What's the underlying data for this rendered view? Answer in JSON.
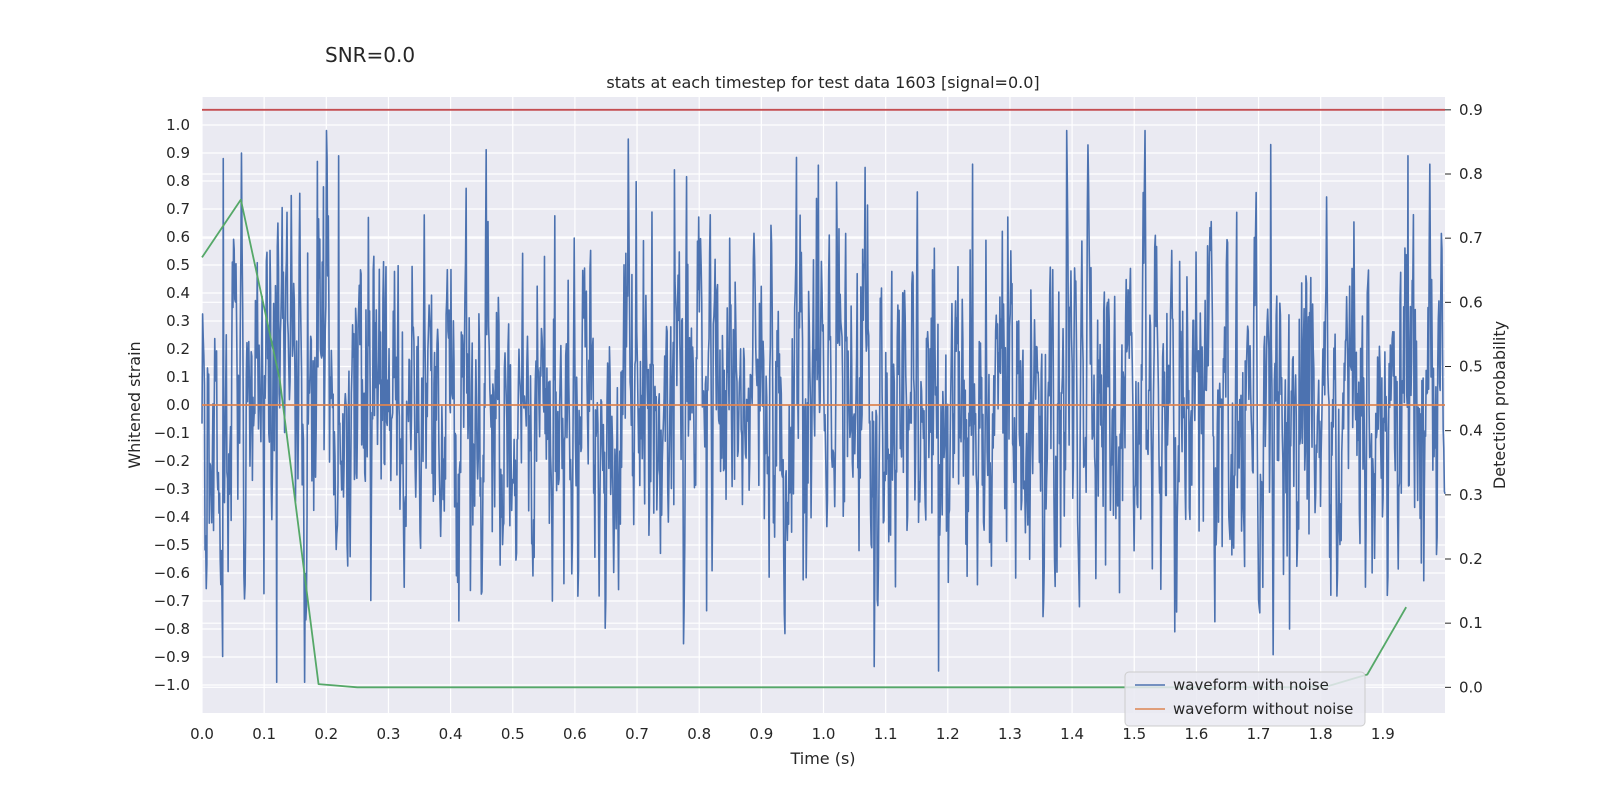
{
  "chart_data": {
    "type": "line",
    "suptitle": "SNR=0.0",
    "title": "stats at each timestep for test data 1603 [signal=0.0]",
    "xlabel": "Time (s)",
    "ylabel": "Whitened strain",
    "y2label": "Detection probability",
    "xlim": [
      0.0,
      2.0
    ],
    "ylim": [
      -1.1,
      1.1
    ],
    "y2lim": [
      -0.04,
      0.92
    ],
    "x_ticks": [
      0.0,
      0.1,
      0.2,
      0.3,
      0.4,
      0.5,
      0.6,
      0.7,
      0.8,
      0.9,
      1.0,
      1.1,
      1.2,
      1.3,
      1.4,
      1.5,
      1.6,
      1.7,
      1.8,
      1.9
    ],
    "x_tick_labels": [
      "0.0",
      "0.1",
      "0.2",
      "0.3",
      "0.4",
      "0.5",
      "0.6",
      "0.7",
      "0.8",
      "0.9",
      "1.0",
      "1.1",
      "1.2",
      "1.3",
      "1.4",
      "1.5",
      "1.6",
      "1.7",
      "1.8",
      "1.9"
    ],
    "y_ticks": [
      1.0,
      0.9,
      0.8,
      0.7,
      0.6,
      0.5,
      0.4,
      0.3,
      0.2,
      0.1,
      0.0,
      -0.1,
      -0.2,
      -0.3,
      -0.4,
      -0.5,
      -0.6,
      -0.7,
      -0.8,
      -0.9,
      -1.0
    ],
    "y_tick_labels": [
      "1.0",
      "0.9",
      "0.8",
      "0.7",
      "0.6",
      "0.5",
      "0.4",
      "0.3",
      "0.2",
      "0.1",
      "0.0",
      "−0.1",
      "−0.2",
      "−0.3",
      "−0.4",
      "−0.5",
      "−0.6",
      "−0.7",
      "−0.8",
      "−0.9",
      "−1.0"
    ],
    "y2_ticks": [
      0.9,
      0.8,
      0.7,
      0.6,
      0.5,
      0.4,
      0.3,
      0.2,
      0.1,
      0.0
    ],
    "y2_tick_labels": [
      "0.9",
      "0.8",
      "0.7",
      "0.6",
      "0.5",
      "0.4",
      "0.3",
      "0.2",
      "0.1",
      "0.0"
    ],
    "grid": true,
    "legend_position": "bottom-right",
    "legend": [
      {
        "label": "waveform with noise",
        "color": "#4c72b0"
      },
      {
        "label": "waveform without noise",
        "color": "#dd8452"
      }
    ],
    "series": [
      {
        "name": "waveform with noise",
        "axis": "left",
        "color": "#4c72b0",
        "kind": "noise",
        "samples": 2048,
        "x_range": [
          0.0,
          2.0
        ],
        "std": 0.3,
        "extremes": [
          {
            "x": 0.034,
            "y": 0.88
          },
          {
            "x": 0.12,
            "y": -0.99
          },
          {
            "x": 0.165,
            "y": -0.99
          },
          {
            "x": 0.186,
            "y": 0.87
          },
          {
            "x": 0.22,
            "y": 0.89
          },
          {
            "x": 0.76,
            "y": 0.84
          },
          {
            "x": 1.185,
            "y": -0.95
          },
          {
            "x": 1.24,
            "y": 0.86
          },
          {
            "x": 1.72,
            "y": 0.93
          },
          {
            "x": 1.75,
            "y": -0.8
          },
          {
            "x": 1.94,
            "y": 0.89
          },
          {
            "x": 1.565,
            "y": -0.81
          }
        ]
      },
      {
        "name": "waveform without noise",
        "axis": "left",
        "color": "#dd8452",
        "x": [
          0.0,
          2.0
        ],
        "y": [
          0.0,
          0.0
        ]
      },
      {
        "name": "detection probability",
        "axis": "right",
        "color": "#55a868",
        "x": [
          0.0,
          0.0625,
          0.125,
          0.1875,
          0.25,
          0.3125,
          0.375,
          0.4375,
          0.5,
          0.5625,
          0.625,
          0.6875,
          0.75,
          0.8125,
          0.875,
          0.9375,
          1.0,
          1.0625,
          1.125,
          1.1875,
          1.25,
          1.3125,
          1.375,
          1.4375,
          1.5,
          1.5625,
          1.625,
          1.6875,
          1.75,
          1.8125,
          1.875,
          1.9375
        ],
        "y": [
          0.67,
          0.76,
          0.48,
          0.005,
          0.0,
          0.0,
          0.0,
          0.0,
          0.0,
          0.0,
          0.0,
          0.0,
          0.0,
          0.0,
          0.0,
          0.0,
          0.0,
          0.0,
          0.0,
          0.0,
          0.0,
          0.0,
          0.0,
          0.0,
          0.0,
          0.0,
          0.0,
          0.0,
          0.0,
          0.002,
          0.02,
          0.125
        ]
      },
      {
        "name": "threshold",
        "axis": "right",
        "color": "#c44e52",
        "x": [
          0.0,
          2.0
        ],
        "y": [
          0.9,
          0.9
        ]
      }
    ]
  }
}
